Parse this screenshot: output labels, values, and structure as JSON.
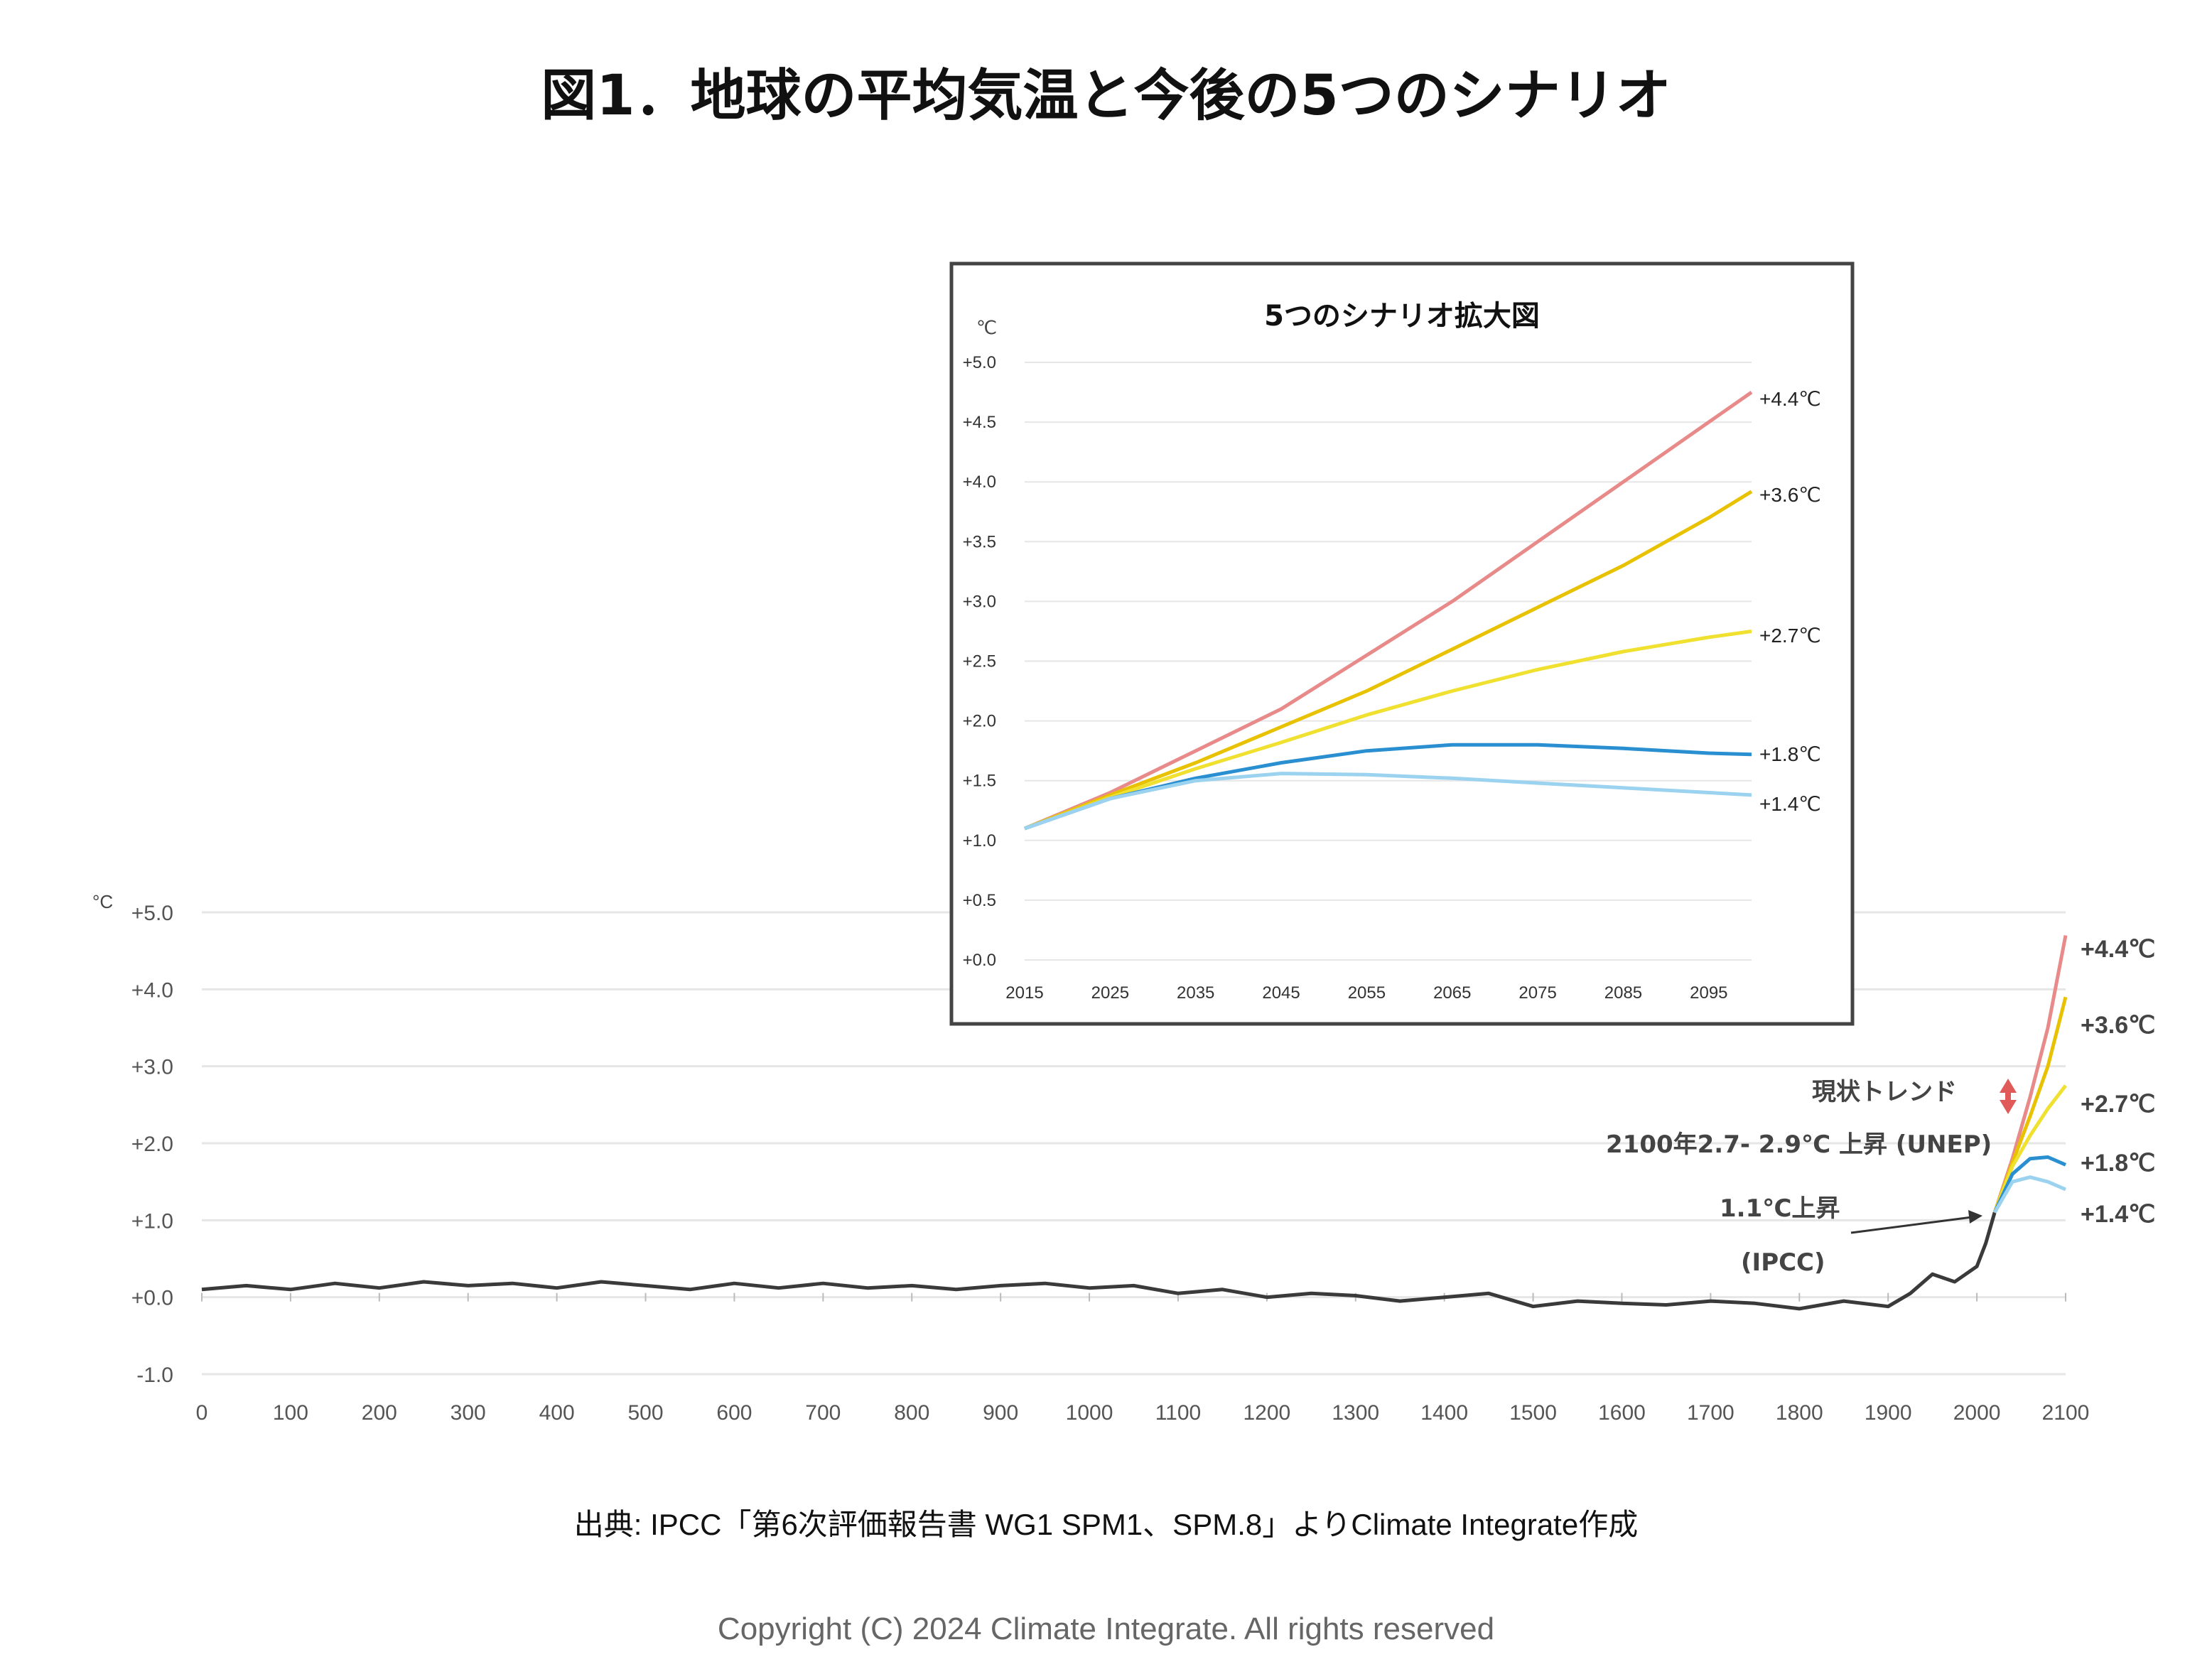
{
  "title": "図1．地球の平均気温と今後の5つのシナリオ",
  "source_note": "出典: IPCC「第6次評価報告書 WG1 SPM1、SPM.8」よりClimate Integrate作成",
  "copyright": "Copyright (C) 2024 Climate Integrate. All rights reserved",
  "colors": {
    "history": "#3a3a3a",
    "s44": "#e88a8a",
    "s36": "#e8c200",
    "s27": "#f0e030",
    "s18": "#2a8fd0",
    "s14": "#9ad2ef",
    "grid": "#e6e6e6",
    "arrow_red": "#e05a5a"
  },
  "chart_data": [
    {
      "type": "line",
      "name": "main",
      "unit": "°C",
      "xlim": [
        0,
        2100
      ],
      "ylim": [
        -1.0,
        5.0
      ],
      "x_ticks": [
        "0",
        "100",
        "200",
        "300",
        "400",
        "500",
        "600",
        "700",
        "800",
        "900",
        "1000",
        "1100",
        "1200",
        "1300",
        "1400",
        "1500",
        "1600",
        "1700",
        "1800",
        "1900",
        "2000",
        "2100"
      ],
      "y_ticks": [
        "+5.0",
        "+4.0",
        "+3.0",
        "+2.0",
        "+1.0",
        "+0.0",
        "-1.0"
      ],
      "history": {
        "x": [
          0,
          50,
          100,
          150,
          200,
          250,
          300,
          350,
          400,
          450,
          500,
          550,
          600,
          650,
          700,
          750,
          800,
          850,
          900,
          950,
          1000,
          1050,
          1100,
          1150,
          1200,
          1250,
          1300,
          1350,
          1400,
          1450,
          1500,
          1550,
          1600,
          1650,
          1700,
          1750,
          1800,
          1850,
          1900,
          1925,
          1950,
          1975,
          2000,
          2010,
          2020
        ],
        "y": [
          0.1,
          0.15,
          0.1,
          0.18,
          0.12,
          0.2,
          0.15,
          0.18,
          0.12,
          0.2,
          0.15,
          0.1,
          0.18,
          0.12,
          0.18,
          0.12,
          0.15,
          0.1,
          0.15,
          0.18,
          0.12,
          0.15,
          0.05,
          0.1,
          0.0,
          0.05,
          0.02,
          -0.05,
          0.0,
          0.05,
          -0.12,
          -0.05,
          -0.08,
          -0.1,
          -0.05,
          -0.08,
          -0.15,
          -0.05,
          -0.12,
          0.05,
          0.3,
          0.2,
          0.4,
          0.7,
          1.1
        ]
      },
      "scenarios": [
        {
          "label": "+4.4℃",
          "x": [
            2020,
            2040,
            2060,
            2080,
            2100
          ],
          "y": [
            1.1,
            1.8,
            2.6,
            3.5,
            4.7
          ]
        },
        {
          "label": "+3.6℃",
          "x": [
            2020,
            2040,
            2060,
            2080,
            2100
          ],
          "y": [
            1.1,
            1.75,
            2.35,
            3.0,
            3.9
          ]
        },
        {
          "label": "+2.7℃",
          "x": [
            2020,
            2040,
            2060,
            2080,
            2100
          ],
          "y": [
            1.1,
            1.7,
            2.1,
            2.45,
            2.75
          ]
        },
        {
          "label": "+1.8℃",
          "x": [
            2020,
            2040,
            2060,
            2080,
            2100
          ],
          "y": [
            1.1,
            1.6,
            1.8,
            1.82,
            1.72
          ]
        },
        {
          "label": "+1.4℃",
          "x": [
            2020,
            2040,
            2060,
            2080,
            2100
          ],
          "y": [
            1.1,
            1.5,
            1.56,
            1.5,
            1.4
          ]
        }
      ],
      "annotations": {
        "trend": "現状トレンド",
        "unep": "2100年2.7- 2.9℃ 上昇 (UNEP)",
        "ipcc_rise": "1.1℃上昇",
        "ipcc": "(IPCC)"
      }
    },
    {
      "type": "line",
      "name": "inset",
      "title": "5つのシナリオ拡大図",
      "unit": "℃",
      "xlim": [
        2015,
        2100
      ],
      "ylim": [
        0.0,
        5.0
      ],
      "x_ticks": [
        "2015",
        "2025",
        "2035",
        "2045",
        "2055",
        "2065",
        "2075",
        "2085",
        "2095"
      ],
      "y_ticks": [
        "+5.0",
        "+4.5",
        "+4.0",
        "+3.5",
        "+3.0",
        "+2.5",
        "+2.0",
        "+1.5",
        "+1.0",
        "+0.5",
        "+0.0"
      ],
      "scenarios": [
        {
          "label": "+4.4℃",
          "x": [
            2015,
            2025,
            2035,
            2045,
            2055,
            2065,
            2075,
            2085,
            2095,
            2100
          ],
          "y": [
            1.1,
            1.4,
            1.75,
            2.1,
            2.55,
            3.0,
            3.5,
            4.0,
            4.5,
            4.75
          ]
        },
        {
          "label": "+3.6℃",
          "x": [
            2015,
            2025,
            2035,
            2045,
            2055,
            2065,
            2075,
            2085,
            2095,
            2100
          ],
          "y": [
            1.1,
            1.38,
            1.65,
            1.95,
            2.25,
            2.6,
            2.95,
            3.3,
            3.7,
            3.92
          ]
        },
        {
          "label": "+2.7℃",
          "x": [
            2015,
            2025,
            2035,
            2045,
            2055,
            2065,
            2075,
            2085,
            2095,
            2100
          ],
          "y": [
            1.1,
            1.36,
            1.6,
            1.82,
            2.05,
            2.25,
            2.43,
            2.58,
            2.7,
            2.75
          ]
        },
        {
          "label": "+1.8℃",
          "x": [
            2015,
            2025,
            2035,
            2045,
            2055,
            2065,
            2075,
            2085,
            2095,
            2100
          ],
          "y": [
            1.1,
            1.35,
            1.52,
            1.65,
            1.75,
            1.8,
            1.8,
            1.77,
            1.73,
            1.72
          ]
        },
        {
          "label": "+1.4℃",
          "x": [
            2015,
            2025,
            2035,
            2045,
            2055,
            2065,
            2075,
            2085,
            2095,
            2100
          ],
          "y": [
            1.1,
            1.35,
            1.5,
            1.56,
            1.55,
            1.52,
            1.48,
            1.44,
            1.4,
            1.38
          ]
        }
      ]
    }
  ]
}
